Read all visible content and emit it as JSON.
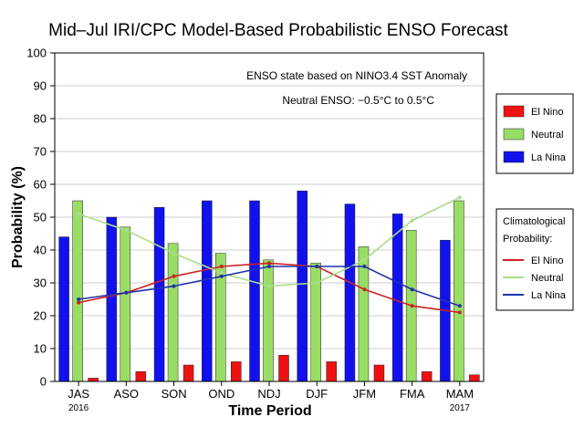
{
  "chart_data": {
    "type": "bar",
    "title": "Mid–Jul IRI/CPC Model-Based Probabilistic ENSO Forecast",
    "xlabel": "Time Period",
    "ylabel": "Probability (%)",
    "ylim": [
      0,
      100
    ],
    "yticks": [
      0,
      10,
      20,
      30,
      40,
      50,
      60,
      70,
      80,
      90,
      100
    ],
    "categories": [
      "JAS",
      "ASO",
      "SON",
      "OND",
      "NDJ",
      "DJF",
      "JFM",
      "FMA",
      "MAM"
    ],
    "year_labels": {
      "start": "2016",
      "end": "2017"
    },
    "annotations": [
      "ENSO state based on NINO3.4 SST Anomaly",
      "Neutral ENSO: −0.5°C to 0.5°C"
    ],
    "legend_position": "right",
    "series": [
      {
        "name": "El Nino",
        "color": "#ee1111",
        "values": [
          1,
          3,
          5,
          6,
          8,
          6,
          5,
          3,
          2
        ]
      },
      {
        "name": "Neutral",
        "color": "#99dd66",
        "values": [
          55,
          47,
          42,
          39,
          37,
          36,
          41,
          46,
          55
        ]
      },
      {
        "name": "La Nina",
        "color": "#1111ee",
        "values": [
          44,
          50,
          53,
          55,
          55,
          58,
          54,
          51,
          43
        ]
      }
    ],
    "climatology": {
      "title": "Climatological Probability:",
      "series": [
        {
          "name": "El Nino",
          "color": "#cc2222",
          "values": [
            24,
            27,
            32,
            35,
            36,
            35,
            28,
            23,
            21
          ]
        },
        {
          "name": "Neutral",
          "color": "#aadd88",
          "values": [
            51,
            46,
            39,
            33,
            29,
            30,
            37,
            49,
            56
          ]
        },
        {
          "name": "La Nina",
          "color": "#2233aa",
          "values": [
            25,
            27,
            29,
            32,
            35,
            35,
            35,
            28,
            23
          ]
        }
      ]
    }
  }
}
